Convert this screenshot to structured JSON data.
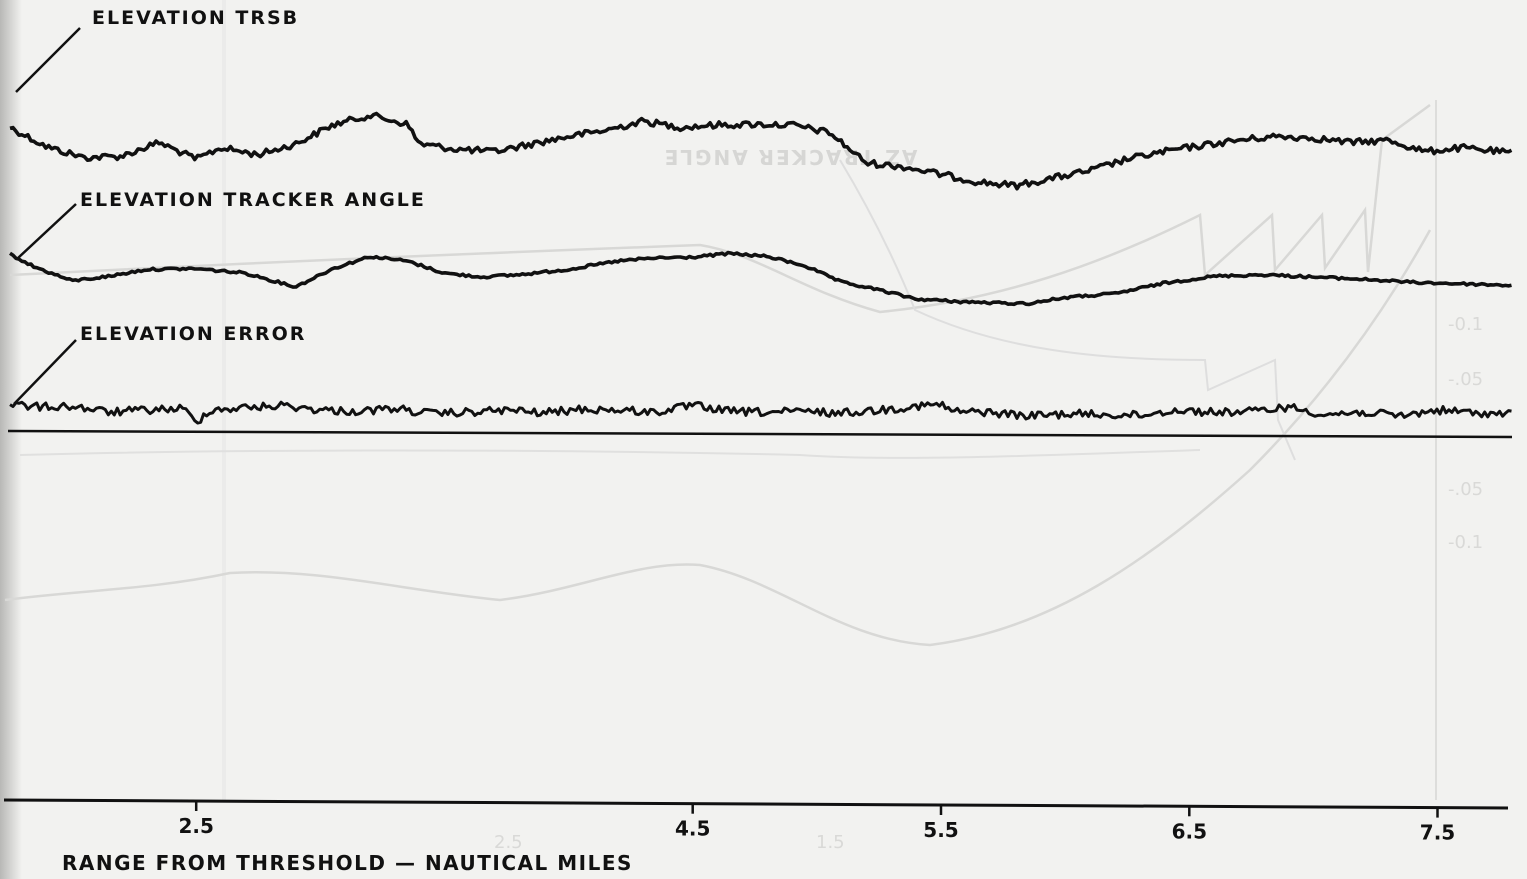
{
  "chart_data": {
    "type": "line",
    "title": "",
    "xlabel": "RANGE FROM THRESHOLD — NAUTICAL MILES",
    "ylabel": "",
    "x_ticks": [
      "2.5",
      "4.5",
      "5.5",
      "6.5",
      "7.5"
    ],
    "x_tick_values": [
      2.5,
      4.5,
      5.5,
      6.5,
      7.5
    ],
    "xlim": [
      1.75,
      7.8
    ],
    "ylim": [
      0,
      1
    ],
    "grid": false,
    "legend": "none",
    "series_color": "#111111",
    "series": [
      {
        "name": "ELEVATION TRSB",
        "x": [
          1.75,
          1.9,
          2.05,
          2.2,
          2.35,
          2.5,
          2.6,
          2.75,
          2.9,
          3.05,
          3.2,
          3.35,
          3.4,
          3.55,
          3.7,
          3.85,
          4.0,
          4.15,
          4.3,
          4.45,
          4.6,
          4.75,
          4.9,
          5.05,
          5.2,
          5.35,
          5.5,
          5.65,
          5.8,
          5.95,
          6.1,
          6.25,
          6.4,
          6.55,
          6.7,
          6.85,
          7.0,
          7.15,
          7.3,
          7.45,
          7.6,
          7.8
        ],
        "y": [
          0.872,
          0.846,
          0.832,
          0.834,
          0.852,
          0.83,
          0.845,
          0.836,
          0.85,
          0.875,
          0.888,
          0.876,
          0.85,
          0.843,
          0.84,
          0.85,
          0.86,
          0.868,
          0.88,
          0.872,
          0.875,
          0.876,
          0.875,
          0.865,
          0.825,
          0.82,
          0.81,
          0.8,
          0.795,
          0.805,
          0.815,
          0.83,
          0.84,
          0.848,
          0.855,
          0.86,
          0.858,
          0.852,
          0.855,
          0.84,
          0.845,
          0.838
        ]
      },
      {
        "name": "ELEVATION TRACKER ANGLE",
        "x": [
          1.75,
          1.85,
          2.0,
          2.15,
          2.3,
          2.5,
          2.7,
          2.9,
          3.05,
          3.2,
          3.35,
          3.5,
          3.65,
          3.8,
          4.0,
          4.2,
          4.35,
          4.5,
          4.65,
          4.8,
          4.95,
          5.1,
          5.25,
          5.4,
          5.55,
          5.7,
          5.85,
          6.0,
          6.2,
          6.4,
          6.6,
          6.8,
          7.0,
          7.2,
          7.4,
          7.6,
          7.8
        ],
        "y": [
          0.705,
          0.688,
          0.67,
          0.676,
          0.685,
          0.686,
          0.68,
          0.662,
          0.686,
          0.702,
          0.696,
          0.68,
          0.675,
          0.678,
          0.685,
          0.696,
          0.7,
          0.701,
          0.706,
          0.702,
          0.69,
          0.668,
          0.658,
          0.646,
          0.643,
          0.641,
          0.64,
          0.648,
          0.653,
          0.667,
          0.676,
          0.678,
          0.675,
          0.672,
          0.668,
          0.666,
          0.664
        ]
      },
      {
        "name": "ELEVATION ERROR",
        "x": [
          1.75,
          1.85,
          2.0,
          2.15,
          2.3,
          2.45,
          2.5,
          2.55,
          2.7,
          2.85,
          3.0,
          3.15,
          3.3,
          3.45,
          3.6,
          3.75,
          3.9,
          4.05,
          4.2,
          4.35,
          4.5,
          4.65,
          4.8,
          4.95,
          5.1,
          5.25,
          5.4,
          5.5,
          5.55,
          5.7,
          5.85,
          6.0,
          6.15,
          6.3,
          6.45,
          6.6,
          6.75,
          6.9,
          7.05,
          7.2,
          7.35,
          7.5,
          7.65,
          7.8
        ],
        "y": [
          0.508,
          0.504,
          0.505,
          0.497,
          0.5,
          0.502,
          0.482,
          0.5,
          0.503,
          0.506,
          0.5,
          0.498,
          0.502,
          0.495,
          0.497,
          0.5,
          0.496,
          0.501,
          0.5,
          0.497,
          0.506,
          0.498,
          0.497,
          0.498,
          0.496,
          0.5,
          0.505,
          0.507,
          0.498,
          0.497,
          0.492,
          0.495,
          0.494,
          0.493,
          0.5,
          0.497,
          0.498,
          0.504,
          0.494,
          0.497,
          0.492,
          0.5,
          0.496,
          0.495
        ]
      }
    ]
  }
}
